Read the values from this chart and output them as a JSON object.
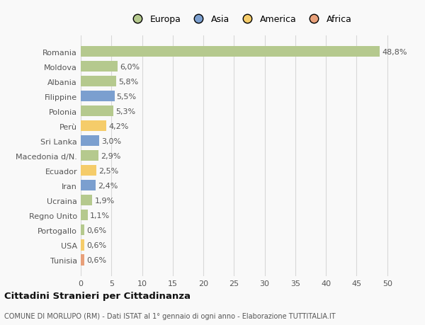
{
  "countries": [
    "Romania",
    "Moldova",
    "Albania",
    "Filippine",
    "Polonia",
    "Perù",
    "Sri Lanka",
    "Macedonia d/N.",
    "Ecuador",
    "Iran",
    "Ucraina",
    "Regno Unito",
    "Portogallo",
    "USA",
    "Tunisia"
  ],
  "values": [
    48.8,
    6.0,
    5.8,
    5.5,
    5.3,
    4.2,
    3.0,
    2.9,
    2.5,
    2.4,
    1.9,
    1.1,
    0.6,
    0.6,
    0.6
  ],
  "labels": [
    "48,8%",
    "6,0%",
    "5,8%",
    "5,5%",
    "5,3%",
    "4,2%",
    "3,0%",
    "2,9%",
    "2,5%",
    "2,4%",
    "1,9%",
    "1,1%",
    "0,6%",
    "0,6%",
    "0,6%"
  ],
  "continents": [
    "Europa",
    "Europa",
    "Europa",
    "Asia",
    "Europa",
    "America",
    "Asia",
    "Europa",
    "America",
    "Asia",
    "Europa",
    "Europa",
    "Europa",
    "America",
    "Africa"
  ],
  "colors": {
    "Europa": "#b5c98e",
    "Asia": "#7b9fcf",
    "America": "#f5cc6a",
    "Africa": "#e8a07a"
  },
  "xlim": [
    0,
    52
  ],
  "xticks": [
    0,
    5,
    10,
    15,
    20,
    25,
    30,
    35,
    40,
    45,
    50
  ],
  "title": "Cittadini Stranieri per Cittadinanza",
  "subtitle": "COMUNE DI MORLUPO (RM) - Dati ISTAT al 1° gennaio di ogni anno - Elaborazione TUTTITALIA.IT",
  "background_color": "#f9f9f9",
  "grid_color": "#d8d8d8",
  "bar_height": 0.72,
  "label_fontsize": 8,
  "tick_fontsize": 8,
  "legend_order": [
    "Europa",
    "Asia",
    "America",
    "Africa"
  ]
}
